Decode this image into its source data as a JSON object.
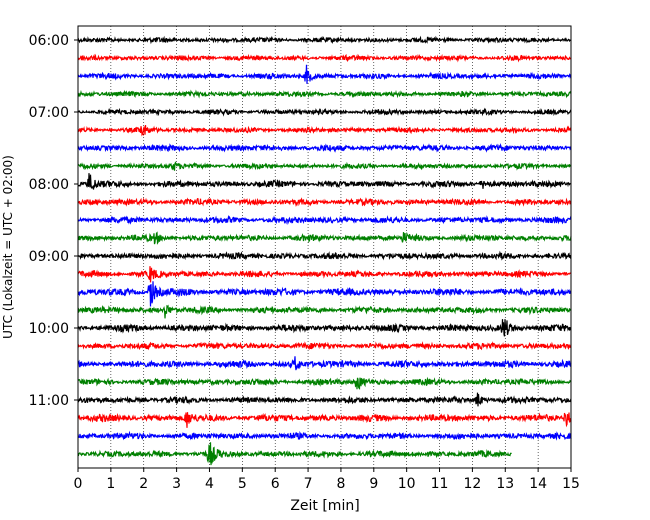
{
  "chart_data": {
    "type": "line",
    "title": "",
    "xlabel": "Zeit  [min]",
    "ylabel": "UTC (Lokalzeit = UTC + 02:00)",
    "xlim": [
      0,
      15
    ],
    "x_ticks": [
      "0",
      "1",
      "2",
      "3",
      "4",
      "5",
      "6",
      "7",
      "8",
      "9",
      "10",
      "11",
      "12",
      "13",
      "14",
      "15"
    ],
    "y_ticks": [
      "06:00",
      "07:00",
      "08:00",
      "09:00",
      "10:00",
      "11:00"
    ],
    "grid": "vertical dotted at each minute",
    "colors": [
      "#000000",
      "#ff0000",
      "#0000ff",
      "#008000"
    ],
    "traces": [
      {
        "start": "06:00",
        "color": "#000000",
        "amplitude": 2.0,
        "end_min": 15,
        "events": []
      },
      {
        "start": "06:15",
        "color": "#ff0000",
        "amplitude": 2.0,
        "end_min": 15,
        "events": []
      },
      {
        "start": "06:30",
        "color": "#0000ff",
        "amplitude": 2.2,
        "end_min": 15,
        "events": [
          {
            "t": 6.95,
            "amp": 10
          }
        ]
      },
      {
        "start": "06:45",
        "color": "#008000",
        "amplitude": 2.0,
        "end_min": 15,
        "events": []
      },
      {
        "start": "07:00",
        "color": "#000000",
        "amplitude": 2.0,
        "end_min": 15,
        "events": []
      },
      {
        "start": "07:15",
        "color": "#ff0000",
        "amplitude": 2.0,
        "end_min": 15,
        "events": [
          {
            "t": 1.95,
            "amp": 6
          }
        ]
      },
      {
        "start": "07:30",
        "color": "#0000ff",
        "amplitude": 2.5,
        "end_min": 15,
        "events": []
      },
      {
        "start": "07:45",
        "color": "#008000",
        "amplitude": 2.0,
        "end_min": 15,
        "events": [
          {
            "t": 2.9,
            "amp": 4
          }
        ]
      },
      {
        "start": "08:00",
        "color": "#000000",
        "amplitude": 2.5,
        "end_min": 15,
        "events": [
          {
            "t": 0.35,
            "amp": 11
          },
          {
            "t": 12.3,
            "amp": 4
          }
        ]
      },
      {
        "start": "08:15",
        "color": "#ff0000",
        "amplitude": 2.5,
        "end_min": 15,
        "events": []
      },
      {
        "start": "08:30",
        "color": "#0000ff",
        "amplitude": 2.5,
        "end_min": 15,
        "events": []
      },
      {
        "start": "08:45",
        "color": "#008000",
        "amplitude": 2.5,
        "end_min": 15,
        "events": [
          {
            "t": 2.35,
            "amp": 5
          },
          {
            "t": 9.9,
            "amp": 4
          }
        ]
      },
      {
        "start": "09:00",
        "color": "#000000",
        "amplitude": 2.5,
        "end_min": 15,
        "events": []
      },
      {
        "start": "09:15",
        "color": "#ff0000",
        "amplitude": 2.5,
        "end_min": 15,
        "events": [
          {
            "t": 2.2,
            "amp": 7
          }
        ]
      },
      {
        "start": "09:30",
        "color": "#0000ff",
        "amplitude": 3.0,
        "end_min": 15,
        "events": [
          {
            "t": 2.2,
            "amp": 18
          }
        ]
      },
      {
        "start": "09:45",
        "color": "#008000",
        "amplitude": 2.5,
        "end_min": 15,
        "events": [
          {
            "t": 2.65,
            "amp": 7
          }
        ]
      },
      {
        "start": "10:00",
        "color": "#000000",
        "amplitude": 2.8,
        "end_min": 15,
        "events": [
          {
            "t": 12.95,
            "amp": 13
          }
        ]
      },
      {
        "start": "10:15",
        "color": "#ff0000",
        "amplitude": 2.5,
        "end_min": 15,
        "events": []
      },
      {
        "start": "10:30",
        "color": "#0000ff",
        "amplitude": 2.8,
        "end_min": 15,
        "events": [
          {
            "t": 6.6,
            "amp": 6
          }
        ]
      },
      {
        "start": "10:45",
        "color": "#008000",
        "amplitude": 2.5,
        "end_min": 15,
        "events": [
          {
            "t": 8.5,
            "amp": 8
          }
        ]
      },
      {
        "start": "11:00",
        "color": "#000000",
        "amplitude": 2.5,
        "end_min": 15,
        "events": [
          {
            "t": 12.15,
            "amp": 8
          }
        ]
      },
      {
        "start": "11:15",
        "color": "#ff0000",
        "amplitude": 2.8,
        "end_min": 15,
        "events": [
          {
            "t": 3.3,
            "amp": 9
          },
          {
            "t": 14.85,
            "amp": 9
          }
        ]
      },
      {
        "start": "11:30",
        "color": "#0000ff",
        "amplitude": 2.5,
        "end_min": 15,
        "events": []
      },
      {
        "start": "11:45",
        "color": "#008000",
        "amplitude": 2.5,
        "end_min": 13.2,
        "events": [
          {
            "t": 4.0,
            "amp": 13
          }
        ]
      }
    ]
  }
}
